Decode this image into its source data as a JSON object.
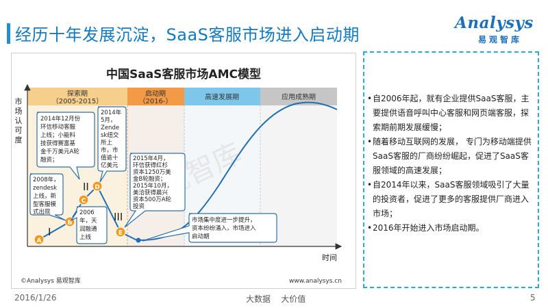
{
  "header": {
    "title": "经历十年发展沉淀，SaaS客服市场进入启动期"
  },
  "logo": {
    "name": "Analysys",
    "chinese": "易观智库"
  },
  "chart": {
    "title": "中国SaaS客服市场AMC模型",
    "y_axis_label": [
      "市",
      "场",
      "认",
      "可",
      "度"
    ],
    "x_axis_label": "时间",
    "phases": [
      {
        "name": "探索期",
        "period": "（2005-2015）",
        "color": "#f7cf8c"
      },
      {
        "name": "启动期",
        "period": "（2016-）",
        "color": "#f39a47"
      },
      {
        "name": "高速发展期",
        "period": "",
        "color": "#7ec7ea"
      },
      {
        "name": "应用成熟期",
        "period": "",
        "color": "#c6c6c6"
      }
    ],
    "markers": [
      {
        "label": "A",
        "roman": "I"
      },
      {
        "label": "B",
        "roman": ""
      },
      {
        "label": "C",
        "roman": ""
      },
      {
        "label": "D",
        "roman": "II"
      },
      {
        "label": "E",
        "roman": "III"
      }
    ],
    "callouts": {
      "c2005": [
        "2014年12月份",
        "环信移动客服",
        "上线；小能科",
        "技获得赛富基",
        "金千万美元A轮",
        "融资；"
      ],
      "c2014may": [
        "2014年",
        "5月，",
        "Zende",
        "sk纽交",
        "所上",
        "市，市",
        "值逾十",
        "亿美元"
      ],
      "c2008": [
        "2008年，",
        "zendesk",
        "上线，新",
        "型客服模",
        "式出现"
      ],
      "c2006": [
        "2006",
        "年，天",
        "润融通",
        "上线"
      ],
      "c2015": [
        "2015年4月，",
        "环信获得红杉",
        "资本1250万美",
        "金B轮融资；",
        "2015年10月，",
        "美洽获得晨兴",
        "资本500万A轮",
        "投资"
      ],
      "cmarket": [
        "市场集中度进一步提升，",
        "资本纷纷涌入，市场进入",
        "启动期"
      ]
    },
    "watermark": "易观智库",
    "source": "©Analysys 易观智库",
    "website": "www.analysys.cn"
  },
  "bullets": [
    "自2006年起，就有企业提供SaaS客服，主要提供语音呼叫中心客服和网页端客服，探索期前期发展缓慢；",
    "随着移动互联网的发展， 专门为移动端提供SaaS客服的厂商纷纷崛起，促进了SaaS客服领域的高速发展；",
    "自2014年以来，SaaS客服领域吸引了大量的投资者，促进了更多的客服提供厂商进入市场；",
    "2016年开始进入市场启动期。"
  ],
  "footer": {
    "date": "2016/1/26",
    "slogan": "大数据    大价值",
    "page": "5"
  }
}
